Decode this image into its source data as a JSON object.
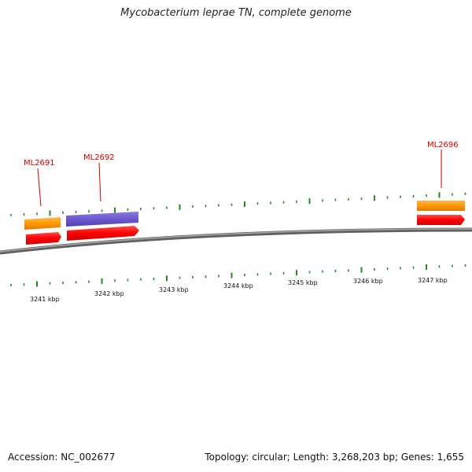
{
  "title": "Mycobacterium leprae TN, complete genome",
  "footer": {
    "accession": "Accession: NC_002677",
    "summary": "Topology: circular; Length: 3,268,203 bp; Genes: 1,655"
  },
  "colors": {
    "backbone": "#808080",
    "tick": "#228b22",
    "gene_label": "#cc0000",
    "orange": "#ff9900",
    "purple": "#6a5acd",
    "red": "#ff0000"
  },
  "kbp_labels": [
    "3241 kbp",
    "3242 kbp",
    "3243 kbp",
    "3244 kbp",
    "3245 kbp",
    "3246 kbp",
    "3247 kbp"
  ],
  "gene_labels": [
    "ML2691",
    "ML2692",
    "ML2696"
  ]
}
